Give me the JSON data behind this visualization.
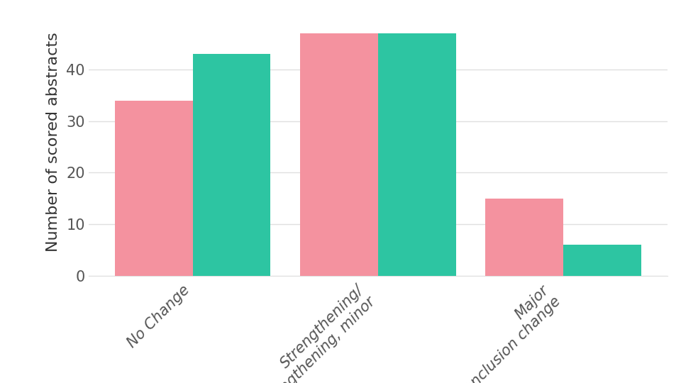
{
  "categories": [
    "No Change",
    "Strengthening/\nStrengthening, minor",
    "Major\nconclusion change"
  ],
  "values_pink": [
    34,
    47,
    15
  ],
  "values_teal": [
    43,
    47,
    6
  ],
  "color_pink": "#F4929F",
  "color_teal": "#2DC5A2",
  "ylabel": "Number of scored abstracts",
  "ylim": [
    0,
    52
  ],
  "yticks": [
    0,
    10,
    20,
    30,
    40
  ],
  "bar_width": 0.42,
  "background_color": "#ffffff",
  "plot_bg_color": "#ffffff",
  "grid_color": "#e0e0e0",
  "tick_label_fontsize": 15,
  "ylabel_fontsize": 16,
  "ylabel_color": "#333333",
  "tick_color": "#555555"
}
